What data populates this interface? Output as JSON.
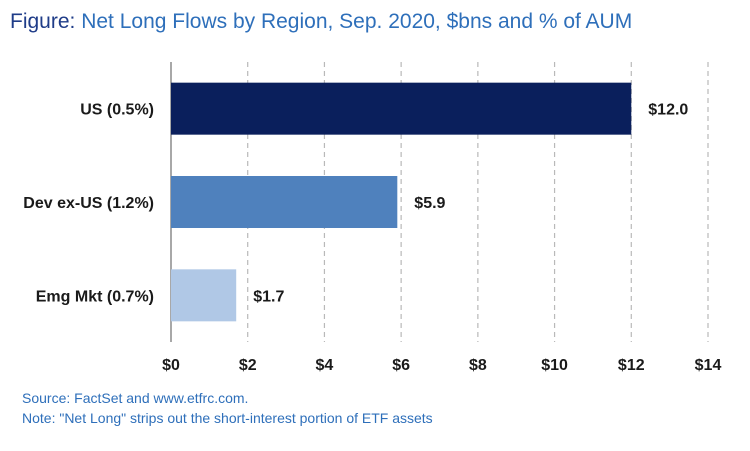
{
  "title": {
    "lead": "Figure:",
    "rest": "Net Long Flows by Region, Sep. 2020, $bns and % of AUM"
  },
  "notes": {
    "source": "Source: FactSet and www.etfrc.com.",
    "note": "Note: \"Net Long\" strips out the short-interest portion of ETF assets"
  },
  "chart_data": {
    "type": "bar",
    "orientation": "horizontal",
    "categories": [
      "US (0.5%)",
      "Dev ex-US (1.2%)",
      "Emg Mkt (0.7%)"
    ],
    "values": [
      12.0,
      5.9,
      1.7
    ],
    "value_labels": [
      "$12.0",
      "$5.9",
      "$1.7"
    ],
    "colors": [
      "#0a1f5c",
      "#4f81bd",
      "#b0c8e6"
    ],
    "xlim": [
      0,
      14
    ],
    "xticks": [
      0,
      2,
      4,
      6,
      8,
      10,
      12,
      14
    ],
    "xtick_labels": [
      "$0",
      "$2",
      "$4",
      "$6",
      "$8",
      "$10",
      "$12",
      "$14"
    ],
    "grid": "vertical-dashed"
  }
}
